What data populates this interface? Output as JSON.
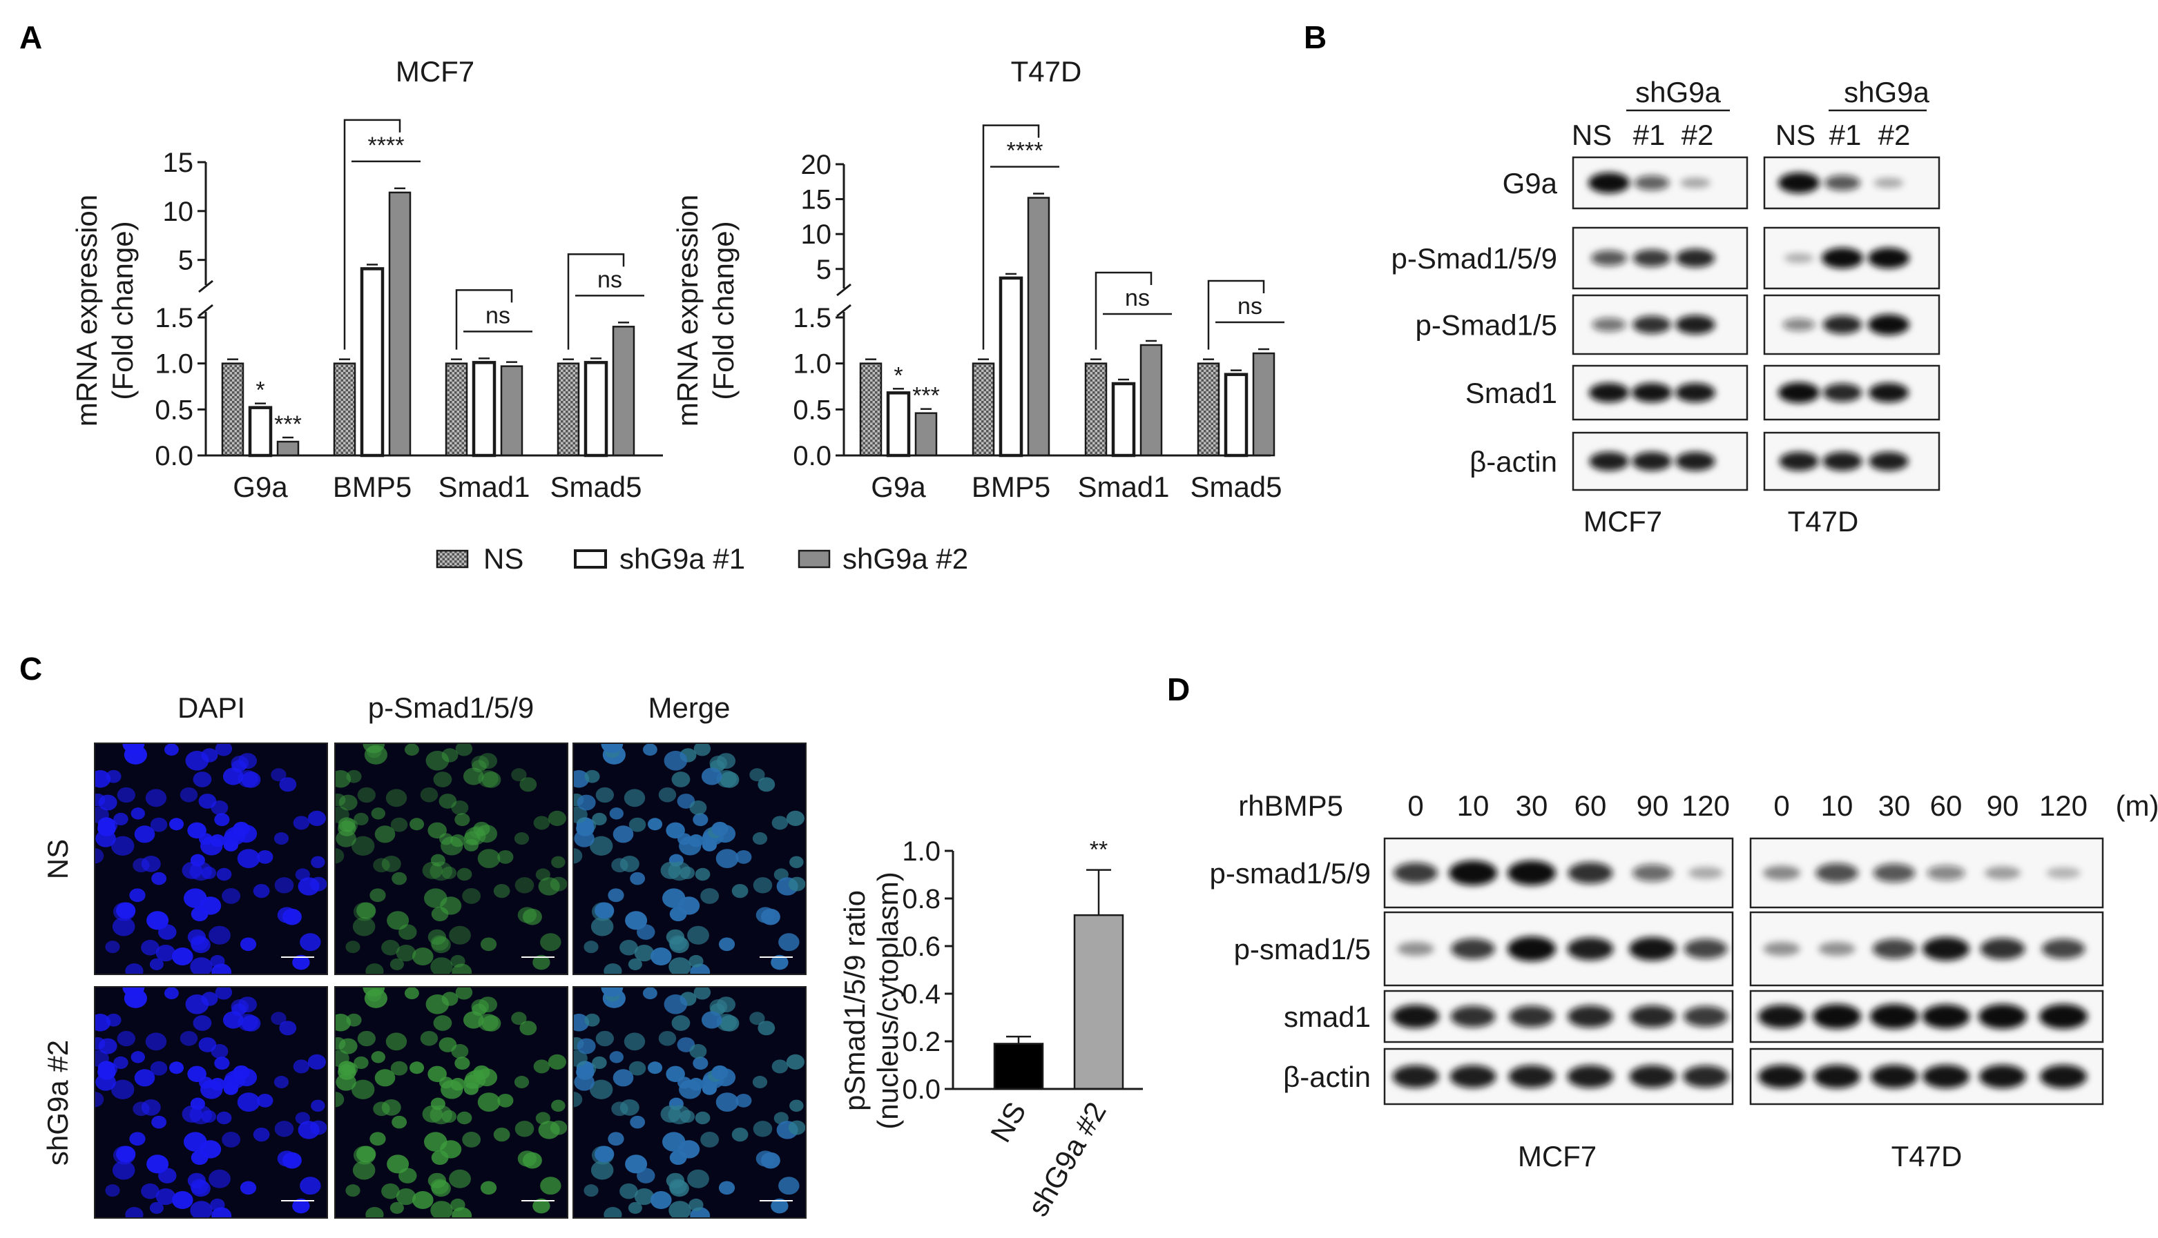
{
  "panels": {
    "a": "A",
    "b": "B",
    "c": "C",
    "d": "D"
  },
  "colors": {
    "ns_fill": "#9a9a9a",
    "sh1_fill": "#ffffff",
    "sh2_fill": "#8c8c8c",
    "bar_black": "#000000",
    "bar_gray": "#a6a6a6",
    "dapi": "#1a1af0",
    "psmad": "#3c9a3c",
    "merge": "#2a6fb0"
  },
  "chart_data": [
    {
      "type": "bar",
      "title": "MCF7",
      "ylabel": "mRNA expression\n(Fold change)",
      "ylabel_line1": "mRNA expression",
      "ylabel_line2": "(Fold change)",
      "categories": [
        "G9a",
        "BMP5",
        "Smad1",
        "Smad5"
      ],
      "y_lower_ticks": [
        "0.0",
        "0.5",
        "1.0",
        "1.5"
      ],
      "y_upper_ticks": [
        "5",
        "10",
        "15"
      ],
      "axis_break": true,
      "series": [
        {
          "name": "NS",
          "values": [
            1.0,
            1.0,
            1.0,
            1.0
          ]
        },
        {
          "name": "shG9a #1",
          "values": [
            0.52,
            4.1,
            1.01,
            1.01
          ]
        },
        {
          "name": "shG9a #2",
          "values": [
            0.15,
            11.9,
            0.97,
            1.4
          ]
        }
      ],
      "annotations": [
        {
          "category": "G9a",
          "series": "shG9a #1",
          "text": "*"
        },
        {
          "category": "G9a",
          "series": "shG9a #2",
          "text": "***"
        },
        {
          "category": "BMP5",
          "text": "****"
        },
        {
          "category": "Smad1",
          "text": "ns"
        },
        {
          "category": "Smad5",
          "text": "ns"
        }
      ]
    },
    {
      "type": "bar",
      "title": "T47D",
      "ylabel": "mRNA expression\n(Fold change)",
      "ylabel_line1": "mRNA expression",
      "ylabel_line2": "(Fold change)",
      "categories": [
        "G9a",
        "BMP5",
        "Smad1",
        "Smad5"
      ],
      "y_lower_ticks": [
        "0.0",
        "0.5",
        "1.0",
        "1.5"
      ],
      "y_upper_ticks": [
        "5",
        "10",
        "15",
        "20"
      ],
      "axis_break": true,
      "series": [
        {
          "name": "NS",
          "values": [
            1.0,
            1.0,
            1.0,
            1.0
          ]
        },
        {
          "name": "shG9a #1",
          "values": [
            0.68,
            3.7,
            0.78,
            0.88
          ]
        },
        {
          "name": "shG9a #2",
          "values": [
            0.46,
            15.2,
            1.2,
            1.11
          ]
        }
      ],
      "annotations": [
        {
          "category": "G9a",
          "series": "shG9a #1",
          "text": "*"
        },
        {
          "category": "G9a",
          "series": "shG9a #2",
          "text": "***"
        },
        {
          "category": "BMP5",
          "text": "****"
        },
        {
          "category": "Smad1",
          "text": "ns"
        },
        {
          "category": "Smad5",
          "text": "ns"
        }
      ]
    },
    {
      "type": "bar",
      "title": "",
      "ylabel": "pSmad1/5/9 ratio\n(nucleus/cytoplasm)",
      "ylabel_line1": "pSmad1/5/9 ratio",
      "ylabel_line2": "(nucleus/cytoplasm)",
      "categories": [
        "NS",
        "shG9a #2"
      ],
      "values": [
        0.19,
        0.73
      ],
      "errors": [
        0.03,
        0.19
      ],
      "ylim": [
        0,
        1.0
      ],
      "y_ticks": [
        "0.0",
        "0.2",
        "0.4",
        "0.6",
        "0.8",
        "1.0"
      ],
      "annotations": [
        {
          "category": "shG9a #2",
          "text": "**"
        }
      ]
    }
  ],
  "legend": [
    {
      "label": "NS"
    },
    {
      "label": "shG9a #1"
    },
    {
      "label": "shG9a #2"
    }
  ],
  "blot_b": {
    "group_label": "shG9a",
    "lanes": [
      "NS",
      "#1",
      "#2"
    ],
    "rows": [
      "G9a",
      "p-Smad1/5/9",
      "p-Smad1/5",
      "Smad1",
      "β-actin"
    ],
    "cells": [
      "MCF7",
      "T47D"
    ],
    "intensities": {
      "MCF7": [
        [
          1.0,
          0.5,
          0.1
        ],
        [
          0.55,
          0.7,
          0.8
        ],
        [
          0.4,
          0.75,
          0.85
        ],
        [
          0.9,
          0.9,
          0.88
        ],
        [
          0.85,
          0.85,
          0.85
        ]
      ],
      "T47D": [
        [
          1.0,
          0.55,
          0.08
        ],
        [
          0.05,
          1.0,
          1.0
        ],
        [
          0.3,
          0.8,
          1.0
        ],
        [
          1.0,
          0.8,
          0.9
        ],
        [
          0.85,
          0.85,
          0.85
        ]
      ]
    }
  },
  "micro_c": {
    "columns": [
      "DAPI",
      "p-Smad1/5/9",
      "Merge"
    ],
    "rows": [
      "NS",
      "shG9a #2"
    ]
  },
  "blot_d": {
    "treatment": "rhBMP5",
    "timepoints": [
      "0",
      "10",
      "30",
      "60",
      "90",
      "120"
    ],
    "unit": "(m)",
    "rows": [
      "p-smad1/5/9",
      "p-smad1/5",
      "smad1",
      "β-actin"
    ],
    "cells": [
      "MCF7",
      "T47D"
    ],
    "intensities": {
      "MCF7": [
        [
          0.7,
          1.0,
          1.0,
          0.75,
          0.45,
          0.08
        ],
        [
          0.2,
          0.7,
          1.0,
          0.85,
          0.9,
          0.65
        ],
        [
          0.9,
          0.75,
          0.75,
          0.8,
          0.8,
          0.7
        ],
        [
          0.85,
          0.85,
          0.85,
          0.85,
          0.85,
          0.8
        ]
      ],
      "T47D": [
        [
          0.25,
          0.6,
          0.55,
          0.3,
          0.15,
          0.03
        ],
        [
          0.2,
          0.2,
          0.65,
          0.9,
          0.75,
          0.65
        ],
        [
          0.9,
          1.0,
          1.0,
          0.95,
          1.0,
          1.0
        ],
        [
          0.9,
          0.9,
          0.9,
          0.9,
          0.9,
          0.9
        ]
      ]
    }
  }
}
